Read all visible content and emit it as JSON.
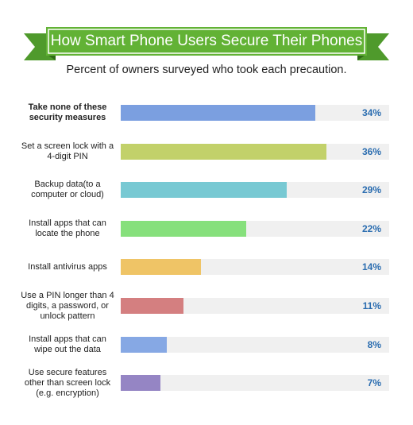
{
  "chart_data": {
    "type": "bar",
    "orientation": "horizontal",
    "title": "How Smart Phone Users Secure Their Phones",
    "subtitle": "Percent of owners surveyed who took each precaution.",
    "categories": [
      "Take none of these security measures",
      "Set a screen lock with a 4-digit PIN",
      "Backup data(to a computer or cloud)",
      "Install apps that can locate the phone",
      "Install antivirus apps",
      "Use a PIN longer than 4 digits, a password, or unlock pattern",
      "Install apps that can wipe out the data",
      "Use secure features other than screen lock (e.g. encryption)"
    ],
    "values": [
      34,
      36,
      29,
      22,
      14,
      11,
      8,
      7
    ],
    "value_labels": [
      "34%",
      "36%",
      "29%",
      "22%",
      "14%",
      "11%",
      "8%",
      "7%"
    ],
    "colors": [
      "#7b9fe0",
      "#c2d16a",
      "#78c9d3",
      "#86e07c",
      "#efc466",
      "#d47f80",
      "#86a8e4",
      "#9585c4"
    ],
    "xlim": [
      0,
      47
    ]
  }
}
